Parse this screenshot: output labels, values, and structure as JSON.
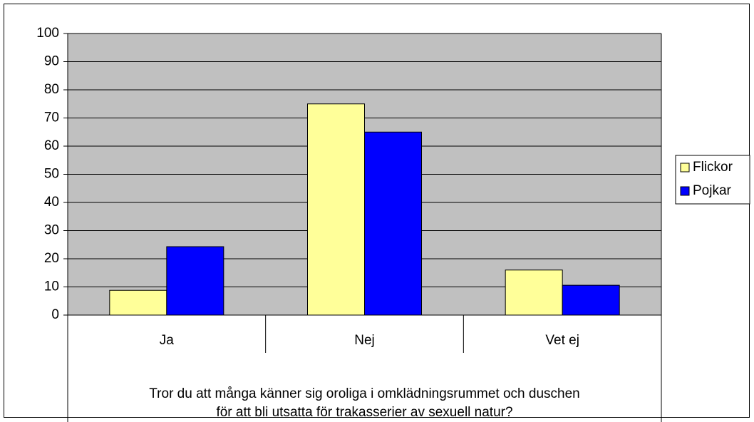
{
  "chart_data": {
    "type": "bar",
    "categories": [
      "Ja",
      "Nej",
      "Vet ej"
    ],
    "series": [
      {
        "name": "Flickor",
        "color": "#ffff99",
        "values": [
          8.8,
          75,
          16
        ]
      },
      {
        "name": "Pojkar",
        "color": "#0000ff",
        "values": [
          24.3,
          65,
          10.6
        ]
      }
    ],
    "xlabel": [
      "Tror du att många känner sig oroliga i omklädningsrummet och duschen",
      "för att bli utsatta för trakasserier av sexuell natur?"
    ],
    "ylim": [
      0,
      100
    ],
    "yticks": [
      0,
      10,
      20,
      30,
      40,
      50,
      60,
      70,
      80,
      90,
      100
    ],
    "grid": true,
    "legend": "right"
  }
}
